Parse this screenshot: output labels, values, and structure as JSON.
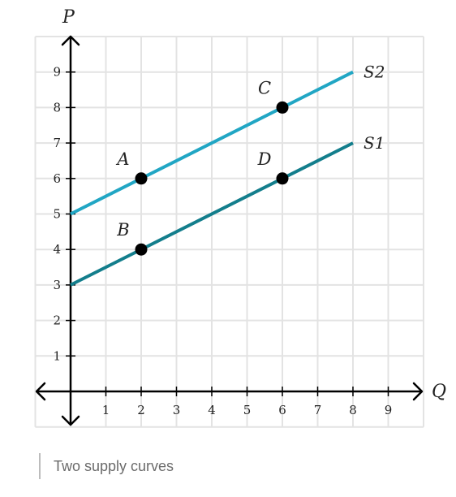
{
  "chart_data": {
    "type": "line",
    "x_axis_label": "Q",
    "y_axis_label": "P",
    "xlim": [
      -1,
      10
    ],
    "ylim": [
      -1,
      10
    ],
    "x_ticks": [
      "1",
      "2",
      "3",
      "4",
      "5",
      "6",
      "7",
      "8",
      "9"
    ],
    "y_ticks": [
      "1",
      "2",
      "3",
      "4",
      "5",
      "6",
      "7",
      "8",
      "9"
    ],
    "grid": true,
    "series": [
      {
        "name": "S2",
        "color": "#21a6c4",
        "points": [
          [
            0,
            5
          ],
          [
            8,
            9
          ]
        ]
      },
      {
        "name": "S1",
        "color": "#137e8c",
        "points": [
          [
            0,
            3
          ],
          [
            8,
            7
          ]
        ]
      }
    ],
    "points": [
      {
        "label": "A",
        "x": 2,
        "y": 6
      },
      {
        "label": "B",
        "x": 2,
        "y": 4
      },
      {
        "label": "C",
        "x": 6,
        "y": 8
      },
      {
        "label": "D",
        "x": 6,
        "y": 6
      }
    ],
    "colors": {
      "grid": "#e3e3e3",
      "axis": "#000000",
      "point": "#000000"
    }
  },
  "caption": "Two supply curves"
}
